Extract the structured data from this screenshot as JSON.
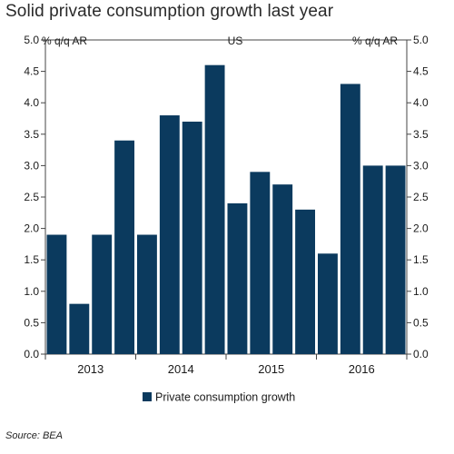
{
  "title": "Solid private consumption growth last year",
  "source": "Source: BEA",
  "colors": {
    "bar": "#0b3a5e",
    "axis": "#444444",
    "background": "#ffffff"
  },
  "chart_data": {
    "type": "bar",
    "title": "Solid private consumption growth last year",
    "panel_label": "US",
    "ylabel_left": "% q/q AR",
    "ylabel_right": "% q/q AR",
    "xlabel": "",
    "ylim": [
      0,
      5
    ],
    "yticks": [
      "0.0",
      "0.5",
      "1.0",
      "1.5",
      "2.0",
      "2.5",
      "3.0",
      "3.5",
      "4.0",
      "4.5",
      "5.0"
    ],
    "year_labels": [
      "2013",
      "2014",
      "2015",
      "2016"
    ],
    "categories": [
      "2013Q1",
      "2013Q2",
      "2013Q3",
      "2013Q4",
      "2014Q1",
      "2014Q2",
      "2014Q3",
      "2014Q4",
      "2015Q1",
      "2015Q2",
      "2015Q3",
      "2015Q4",
      "2016Q1",
      "2016Q2",
      "2016Q3",
      "2016Q4"
    ],
    "series": [
      {
        "name": "Private consumption growth",
        "values": [
          1.9,
          0.8,
          1.9,
          3.4,
          1.9,
          3.8,
          3.7,
          4.6,
          2.4,
          2.9,
          2.7,
          2.3,
          1.6,
          4.3,
          3.0,
          3.0
        ]
      }
    ],
    "legend_position": "bottom-center",
    "grid": false
  }
}
